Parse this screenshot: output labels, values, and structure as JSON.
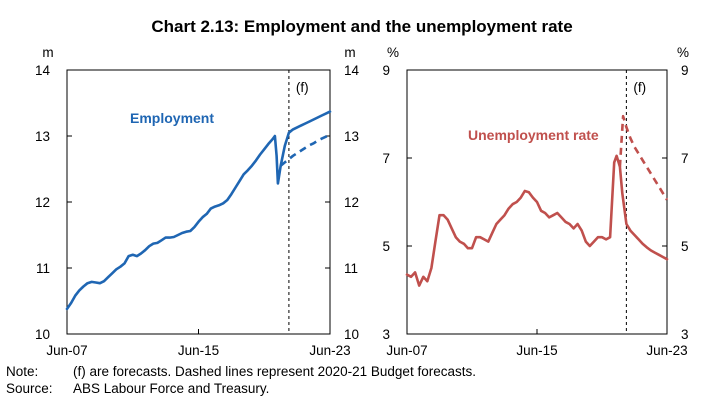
{
  "title": "Chart 2.13: Employment and the unemployment rate",
  "note": {
    "label": "Note:",
    "text": "(f) are forecasts. Dashed lines represent 2020-21 Budget forecasts."
  },
  "source": {
    "label": "Source:",
    "text": "ABS Labour Force and Treasury."
  },
  "colors": {
    "employment": "#1f66b3",
    "unemployment": "#c0504d"
  },
  "chart_data": [
    {
      "type": "line",
      "title": "Employment",
      "unit": "m",
      "ylim": [
        10,
        14
      ],
      "yticks": [
        "10",
        "11",
        "12",
        "13",
        "14"
      ],
      "xticks": [
        "Jun-07",
        "Jun-15",
        "Jun-23"
      ],
      "xlim": [
        2007.5,
        2023.5
      ],
      "forecast_start": 2021.0,
      "forecast_label": "(f)",
      "series": [
        {
          "name": "Employment",
          "style": "solid",
          "points": [
            [
              2007.5,
              10.38
            ],
            [
              2007.75,
              10.47
            ],
            [
              2008.0,
              10.58
            ],
            [
              2008.25,
              10.66
            ],
            [
              2008.5,
              10.72
            ],
            [
              2008.75,
              10.77
            ],
            [
              2009.0,
              10.79
            ],
            [
              2009.25,
              10.78
            ],
            [
              2009.5,
              10.77
            ],
            [
              2009.75,
              10.8
            ],
            [
              2010.0,
              10.86
            ],
            [
              2010.25,
              10.92
            ],
            [
              2010.5,
              10.98
            ],
            [
              2010.75,
              11.02
            ],
            [
              2011.0,
              11.07
            ],
            [
              2011.25,
              11.18
            ],
            [
              2011.5,
              11.2
            ],
            [
              2011.75,
              11.18
            ],
            [
              2012.0,
              11.22
            ],
            [
              2012.25,
              11.27
            ],
            [
              2012.5,
              11.33
            ],
            [
              2012.75,
              11.37
            ],
            [
              2013.0,
              11.38
            ],
            [
              2013.25,
              11.42
            ],
            [
              2013.5,
              11.46
            ],
            [
              2013.75,
              11.46
            ],
            [
              2014.0,
              11.47
            ],
            [
              2014.25,
              11.5
            ],
            [
              2014.5,
              11.53
            ],
            [
              2014.75,
              11.55
            ],
            [
              2015.0,
              11.56
            ],
            [
              2015.25,
              11.62
            ],
            [
              2015.5,
              11.7
            ],
            [
              2015.75,
              11.77
            ],
            [
              2016.0,
              11.82
            ],
            [
              2016.25,
              11.9
            ],
            [
              2016.5,
              11.93
            ],
            [
              2016.75,
              11.95
            ],
            [
              2017.0,
              11.98
            ],
            [
              2017.25,
              12.03
            ],
            [
              2017.5,
              12.12
            ],
            [
              2017.75,
              12.22
            ],
            [
              2018.0,
              12.32
            ],
            [
              2018.25,
              12.42
            ],
            [
              2018.5,
              12.48
            ],
            [
              2018.75,
              12.55
            ],
            [
              2019.0,
              12.63
            ],
            [
              2019.25,
              12.72
            ],
            [
              2019.5,
              12.8
            ],
            [
              2019.75,
              12.88
            ],
            [
              2020.0,
              12.95
            ],
            [
              2020.15,
              13.0
            ],
            [
              2020.25,
              12.7
            ],
            [
              2020.33,
              12.28
            ],
            [
              2020.5,
              12.55
            ],
            [
              2020.75,
              12.85
            ],
            [
              2021.0,
              13.05
            ],
            [
              2021.25,
              13.1
            ],
            [
              2021.5,
              13.13
            ],
            [
              2021.75,
              13.16
            ],
            [
              2022.0,
              13.19
            ],
            [
              2022.25,
              13.22
            ],
            [
              2022.5,
              13.25
            ],
            [
              2022.75,
              13.28
            ],
            [
              2023.0,
              13.31
            ],
            [
              2023.25,
              13.34
            ],
            [
              2023.5,
              13.37
            ]
          ]
        },
        {
          "name": "Employment (2020-21 Budget forecast)",
          "style": "dashed",
          "points": [
            [
              2020.5,
              12.55
            ],
            [
              2020.75,
              12.6
            ],
            [
              2021.0,
              12.65
            ],
            [
              2021.25,
              12.7
            ],
            [
              2021.5,
              12.74
            ],
            [
              2021.75,
              12.78
            ],
            [
              2022.0,
              12.82
            ],
            [
              2022.25,
              12.86
            ],
            [
              2022.5,
              12.89
            ],
            [
              2022.75,
              12.93
            ],
            [
              2023.0,
              12.96
            ],
            [
              2023.25,
              12.99
            ],
            [
              2023.5,
              13.02
            ]
          ]
        }
      ],
      "annotations": [
        {
          "text": "Employment"
        }
      ]
    },
    {
      "type": "line",
      "title": "Unemployment rate",
      "unit": "%",
      "ylim": [
        3,
        9
      ],
      "yticks": [
        "3",
        "5",
        "7",
        "9"
      ],
      "xticks": [
        "Jun-07",
        "Jun-15",
        "Jun-23"
      ],
      "xlim": [
        2007.5,
        2023.5
      ],
      "forecast_start": 2021.0,
      "forecast_label": "(f)",
      "series": [
        {
          "name": "Unemployment rate",
          "style": "solid",
          "points": [
            [
              2007.5,
              4.35
            ],
            [
              2007.75,
              4.3
            ],
            [
              2008.0,
              4.4
            ],
            [
              2008.25,
              4.1
            ],
            [
              2008.5,
              4.3
            ],
            [
              2008.75,
              4.2
            ],
            [
              2009.0,
              4.5
            ],
            [
              2009.25,
              5.1
            ],
            [
              2009.5,
              5.7
            ],
            [
              2009.75,
              5.7
            ],
            [
              2010.0,
              5.6
            ],
            [
              2010.25,
              5.4
            ],
            [
              2010.5,
              5.2
            ],
            [
              2010.75,
              5.1
            ],
            [
              2011.0,
              5.05
            ],
            [
              2011.25,
              4.95
            ],
            [
              2011.5,
              4.95
            ],
            [
              2011.75,
              5.2
            ],
            [
              2012.0,
              5.2
            ],
            [
              2012.25,
              5.15
            ],
            [
              2012.5,
              5.1
            ],
            [
              2012.75,
              5.3
            ],
            [
              2013.0,
              5.5
            ],
            [
              2013.25,
              5.6
            ],
            [
              2013.5,
              5.7
            ],
            [
              2013.75,
              5.85
            ],
            [
              2014.0,
              5.95
            ],
            [
              2014.25,
              6.0
            ],
            [
              2014.5,
              6.1
            ],
            [
              2014.75,
              6.25
            ],
            [
              2015.0,
              6.22
            ],
            [
              2015.25,
              6.1
            ],
            [
              2015.5,
              6.0
            ],
            [
              2015.75,
              5.8
            ],
            [
              2016.0,
              5.75
            ],
            [
              2016.25,
              5.65
            ],
            [
              2016.5,
              5.7
            ],
            [
              2016.75,
              5.75
            ],
            [
              2017.0,
              5.65
            ],
            [
              2017.25,
              5.55
            ],
            [
              2017.5,
              5.5
            ],
            [
              2017.75,
              5.4
            ],
            [
              2018.0,
              5.5
            ],
            [
              2018.25,
              5.35
            ],
            [
              2018.5,
              5.1
            ],
            [
              2018.75,
              5.0
            ],
            [
              2019.0,
              5.1
            ],
            [
              2019.25,
              5.2
            ],
            [
              2019.5,
              5.2
            ],
            [
              2019.75,
              5.15
            ],
            [
              2020.0,
              5.2
            ],
            [
              2020.25,
              6.9
            ],
            [
              2020.4,
              7.05
            ],
            [
              2020.6,
              6.8
            ],
            [
              2020.75,
              6.2
            ],
            [
              2021.0,
              5.5
            ],
            [
              2021.25,
              5.35
            ],
            [
              2021.5,
              5.25
            ],
            [
              2021.75,
              5.15
            ],
            [
              2022.0,
              5.05
            ],
            [
              2022.25,
              4.97
            ],
            [
              2022.5,
              4.9
            ],
            [
              2022.75,
              4.85
            ],
            [
              2023.0,
              4.8
            ],
            [
              2023.25,
              4.75
            ],
            [
              2023.5,
              4.7
            ]
          ]
        },
        {
          "name": "Unemployment rate (2020-21 Budget forecast)",
          "style": "dashed",
          "points": [
            [
              2020.6,
              6.8
            ],
            [
              2020.8,
              7.95
            ],
            [
              2021.0,
              7.7
            ],
            [
              2021.25,
              7.45
            ],
            [
              2021.5,
              7.25
            ],
            [
              2021.75,
              7.1
            ],
            [
              2022.0,
              6.95
            ],
            [
              2022.25,
              6.8
            ],
            [
              2022.5,
              6.65
            ],
            [
              2022.75,
              6.5
            ],
            [
              2023.0,
              6.35
            ],
            [
              2023.25,
              6.2
            ],
            [
              2023.5,
              6.05
            ]
          ]
        }
      ],
      "annotations": [
        {
          "text": "Unemployment rate"
        }
      ]
    }
  ]
}
